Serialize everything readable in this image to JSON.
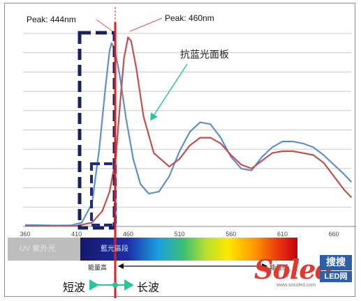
{
  "chart_data": {
    "type": "line",
    "x_ticks": [
      360,
      410,
      460,
      510,
      560,
      610,
      660
    ],
    "xlim": [
      360,
      677
    ],
    "ylim": [
      0,
      100
    ],
    "grid": true,
    "series": [
      {
        "color": "#5b8fd0",
        "x": [
          360,
          390,
          405,
          415,
          425,
          432,
          438,
          442,
          444,
          447,
          452,
          458,
          465,
          472,
          480,
          490,
          500,
          510,
          520,
          530,
          540,
          550,
          560,
          570,
          580,
          590,
          600,
          610,
          620,
          630,
          640,
          650,
          660,
          670,
          677
        ],
        "y": [
          0.8,
          0.5,
          0.6,
          2,
          12,
          40,
          72,
          91,
          95,
          92,
          78,
          56,
          35,
          22,
          17,
          18,
          26,
          39,
          49,
          54,
          53,
          46,
          36,
          30,
          29,
          36,
          41,
          44,
          44,
          43,
          41,
          37,
          32,
          27,
          23
        ]
      },
      {
        "color": "#c0504d",
        "x": [
          360,
          410,
          425,
          435,
          442,
          448,
          452,
          456,
          460,
          463,
          468,
          475,
          485,
          500,
          510,
          520,
          530,
          540,
          550,
          560,
          570,
          580,
          590,
          600,
          610,
          620,
          630,
          640,
          650,
          660,
          670,
          677
        ],
        "y": [
          0.3,
          0.3,
          2,
          8,
          18,
          35,
          62,
          87,
          98,
          96,
          82,
          57,
          38,
          31,
          35,
          42,
          46,
          46,
          43,
          37,
          32,
          30,
          34,
          38,
          39,
          39,
          38,
          37,
          33,
          26,
          19,
          15
        ]
      }
    ],
    "annotations": {
      "peak_left": "Peak: 444nm",
      "peak_right": "Peak: 460nm",
      "filter": "抗蓝光面板"
    },
    "spectrum_bar": {
      "uv_label": "UV 紫外光",
      "blue_label": "藍光區段"
    },
    "energy": {
      "high": "能量高",
      "low": "能量低"
    },
    "waves": {
      "short": "短波",
      "long": "长波"
    }
  },
  "logo": {
    "main": "Soled",
    "cn": "搜搜",
    "led": "LED网",
    "url": "www.sosoled.com"
  },
  "colors": {
    "blue_curve": "#5b8fd0",
    "red_curve": "#c0504d",
    "dashed_box": "#18235e",
    "divider": "#e02020",
    "arrow_green": "#2ec49a"
  }
}
